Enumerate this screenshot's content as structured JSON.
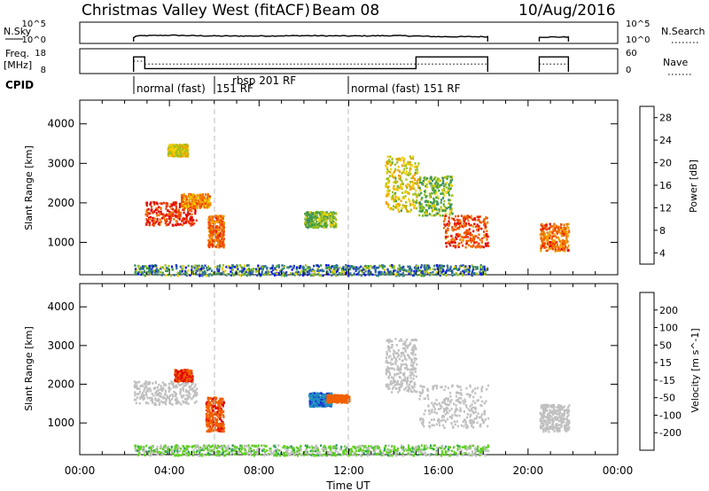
{
  "header": {
    "station": "Christmas Valley West (fitACF)",
    "beam": "Beam 08",
    "date": "10/Aug/2016"
  },
  "noise_panel": {
    "left_label": "N.Sky",
    "right_label": "N.Search",
    "left_ticks": [
      "10^5",
      "10^0"
    ],
    "right_ticks": [
      "10^5",
      "10^0"
    ]
  },
  "freq_panel": {
    "left_label_1": "Freq.",
    "left_label_2": "[MHz]",
    "right_label": "Nave",
    "left_ticks": [
      "18",
      "8"
    ],
    "right_ticks": [
      "60",
      "0"
    ]
  },
  "cpid": {
    "label": "CPID",
    "segments": [
      {
        "label": "normal (fast)",
        "start_hour": 2.4
      },
      {
        "label": "rbsp 201 RF",
        "start_hour": 6.0
      },
      {
        "label": "151 RF",
        "start_hour": 6.0
      },
      {
        "label": "normal (fast) 151 RF",
        "start_hour": 12.0
      }
    ]
  },
  "x_axis": {
    "label": "Time UT",
    "ticks": [
      "00:00",
      "04:00",
      "08:00",
      "12:00",
      "16:00",
      "20:00",
      "00:00"
    ],
    "range_hours": [
      0,
      24
    ]
  },
  "y_axis": {
    "label": "Slant Range [km]",
    "ticks": [
      "1000",
      "2000",
      "3000",
      "4000"
    ],
    "range_km": [
      180,
      4600
    ]
  },
  "power_colorbar": {
    "label": "Power [dB]",
    "ticks": [
      "4",
      "8",
      "12",
      "16",
      "20",
      "24",
      "28"
    ],
    "colors": [
      "#0000ff",
      "#2040c0",
      "#2f6fa0",
      "#3a8a70",
      "#44a040",
      "#a0c020",
      "#f0d000",
      "#f0a000",
      "#f07000",
      "#f04000",
      "#e00000"
    ]
  },
  "velocity_colorbar": {
    "label": "Velocity [m s^-1]",
    "ticks": [
      "200",
      "100",
      "50",
      "15",
      "-15",
      "-50",
      "-100",
      "-200"
    ],
    "colors": [
      "#1a30d0",
      "#2090c0",
      "#30a060",
      "#60d020",
      "#c0c0c0",
      "#f0d000",
      "#f0a000",
      "#f06000",
      "#e00000"
    ]
  },
  "chart_data": [
    {
      "type": "line",
      "title": "N.Sky / N.Search",
      "x_hours": [
        2.4,
        2.5,
        3.0,
        4.0,
        5.0,
        6.0,
        8.0,
        10.0,
        12.0,
        14.0,
        15.0,
        16.0,
        18.2,
        20.5,
        21.8
      ],
      "n_sky_log10": [
        1.0,
        1.6,
        1.7,
        1.8,
        1.7,
        1.6,
        1.6,
        1.7,
        1.6,
        1.7,
        1.6,
        1.4,
        1.4,
        1.3,
        1.3
      ],
      "on_intervals_hours": [
        [
          2.4,
          18.2
        ],
        [
          20.5,
          21.8
        ]
      ]
    },
    {
      "type": "line",
      "title": "Freq. / Nave",
      "freq_mhz": [
        {
          "x": [
            2.4,
            2.9
          ],
          "y": 15
        },
        {
          "x": [
            2.9,
            15.0
          ],
          "y": 9.5
        },
        {
          "x": [
            15.0,
            18.2
          ],
          "y": 15
        },
        {
          "x": [
            20.5,
            21.8
          ],
          "y": 15
        }
      ],
      "nave_approx": [
        {
          "x": [
            2.4,
            2.9
          ],
          "y": 30
        },
        {
          "x": [
            2.9,
            18.2
          ],
          "y": 22
        },
        {
          "x": [
            20.5,
            21.8
          ],
          "y": 22
        }
      ]
    },
    {
      "type": "heatmap",
      "title": "Power [dB]",
      "blobs": [
        {
          "t0": 2.9,
          "t1": 5.2,
          "r0": 1450,
          "r1": 2050,
          "value_db": 27
        },
        {
          "t0": 4.5,
          "t1": 5.8,
          "r0": 1900,
          "r1": 2250,
          "value_db": 22
        },
        {
          "t0": 5.7,
          "t1": 6.4,
          "r0": 900,
          "r1": 1700,
          "value_db": 24
        },
        {
          "t0": 3.9,
          "t1": 4.8,
          "r0": 3200,
          "r1": 3500,
          "value_db": 18
        },
        {
          "t0": 10.0,
          "t1": 11.4,
          "r0": 1400,
          "r1": 1800,
          "value_db": 14
        },
        {
          "t0": 13.6,
          "t1": 15.1,
          "r0": 1800,
          "r1": 3200,
          "value_db": 18
        },
        {
          "t0": 16.2,
          "t1": 18.2,
          "r0": 900,
          "r1": 1700,
          "value_db": 26
        },
        {
          "t0": 15.1,
          "t1": 16.6,
          "r0": 1700,
          "r1": 2700,
          "value_db": 14
        },
        {
          "t0": 20.5,
          "t1": 21.8,
          "r0": 800,
          "r1": 1500,
          "value_db": 24
        },
        {
          "t0": 2.4,
          "t1": 18.2,
          "r0": 180,
          "r1": 450,
          "value_db": 10
        }
      ]
    },
    {
      "type": "heatmap",
      "title": "Velocity [m s^-1]",
      "blobs": [
        {
          "t0": 2.4,
          "t1": 5.2,
          "r0": 1500,
          "r1": 2100,
          "value": 0
        },
        {
          "t0": 5.6,
          "t1": 6.4,
          "r0": 800,
          "r1": 1700,
          "value": -180
        },
        {
          "t0": 4.2,
          "t1": 5.0,
          "r0": 2100,
          "r1": 2400,
          "value": -200
        },
        {
          "t0": 10.2,
          "t1": 11.2,
          "r0": 1450,
          "r1": 1800,
          "value": 180
        },
        {
          "t0": 11.0,
          "t1": 12.0,
          "r0": 1550,
          "r1": 1750,
          "value": -150
        },
        {
          "t0": 13.6,
          "t1": 15.0,
          "r0": 1800,
          "r1": 3200,
          "value": 0
        },
        {
          "t0": 15.1,
          "t1": 18.2,
          "r0": 900,
          "r1": 2000,
          "value": 0
        },
        {
          "t0": 20.5,
          "t1": 21.8,
          "r0": 800,
          "r1": 1500,
          "value": 0
        },
        {
          "t0": 2.4,
          "t1": 18.2,
          "r0": 180,
          "r1": 450,
          "value": 30
        }
      ]
    }
  ]
}
